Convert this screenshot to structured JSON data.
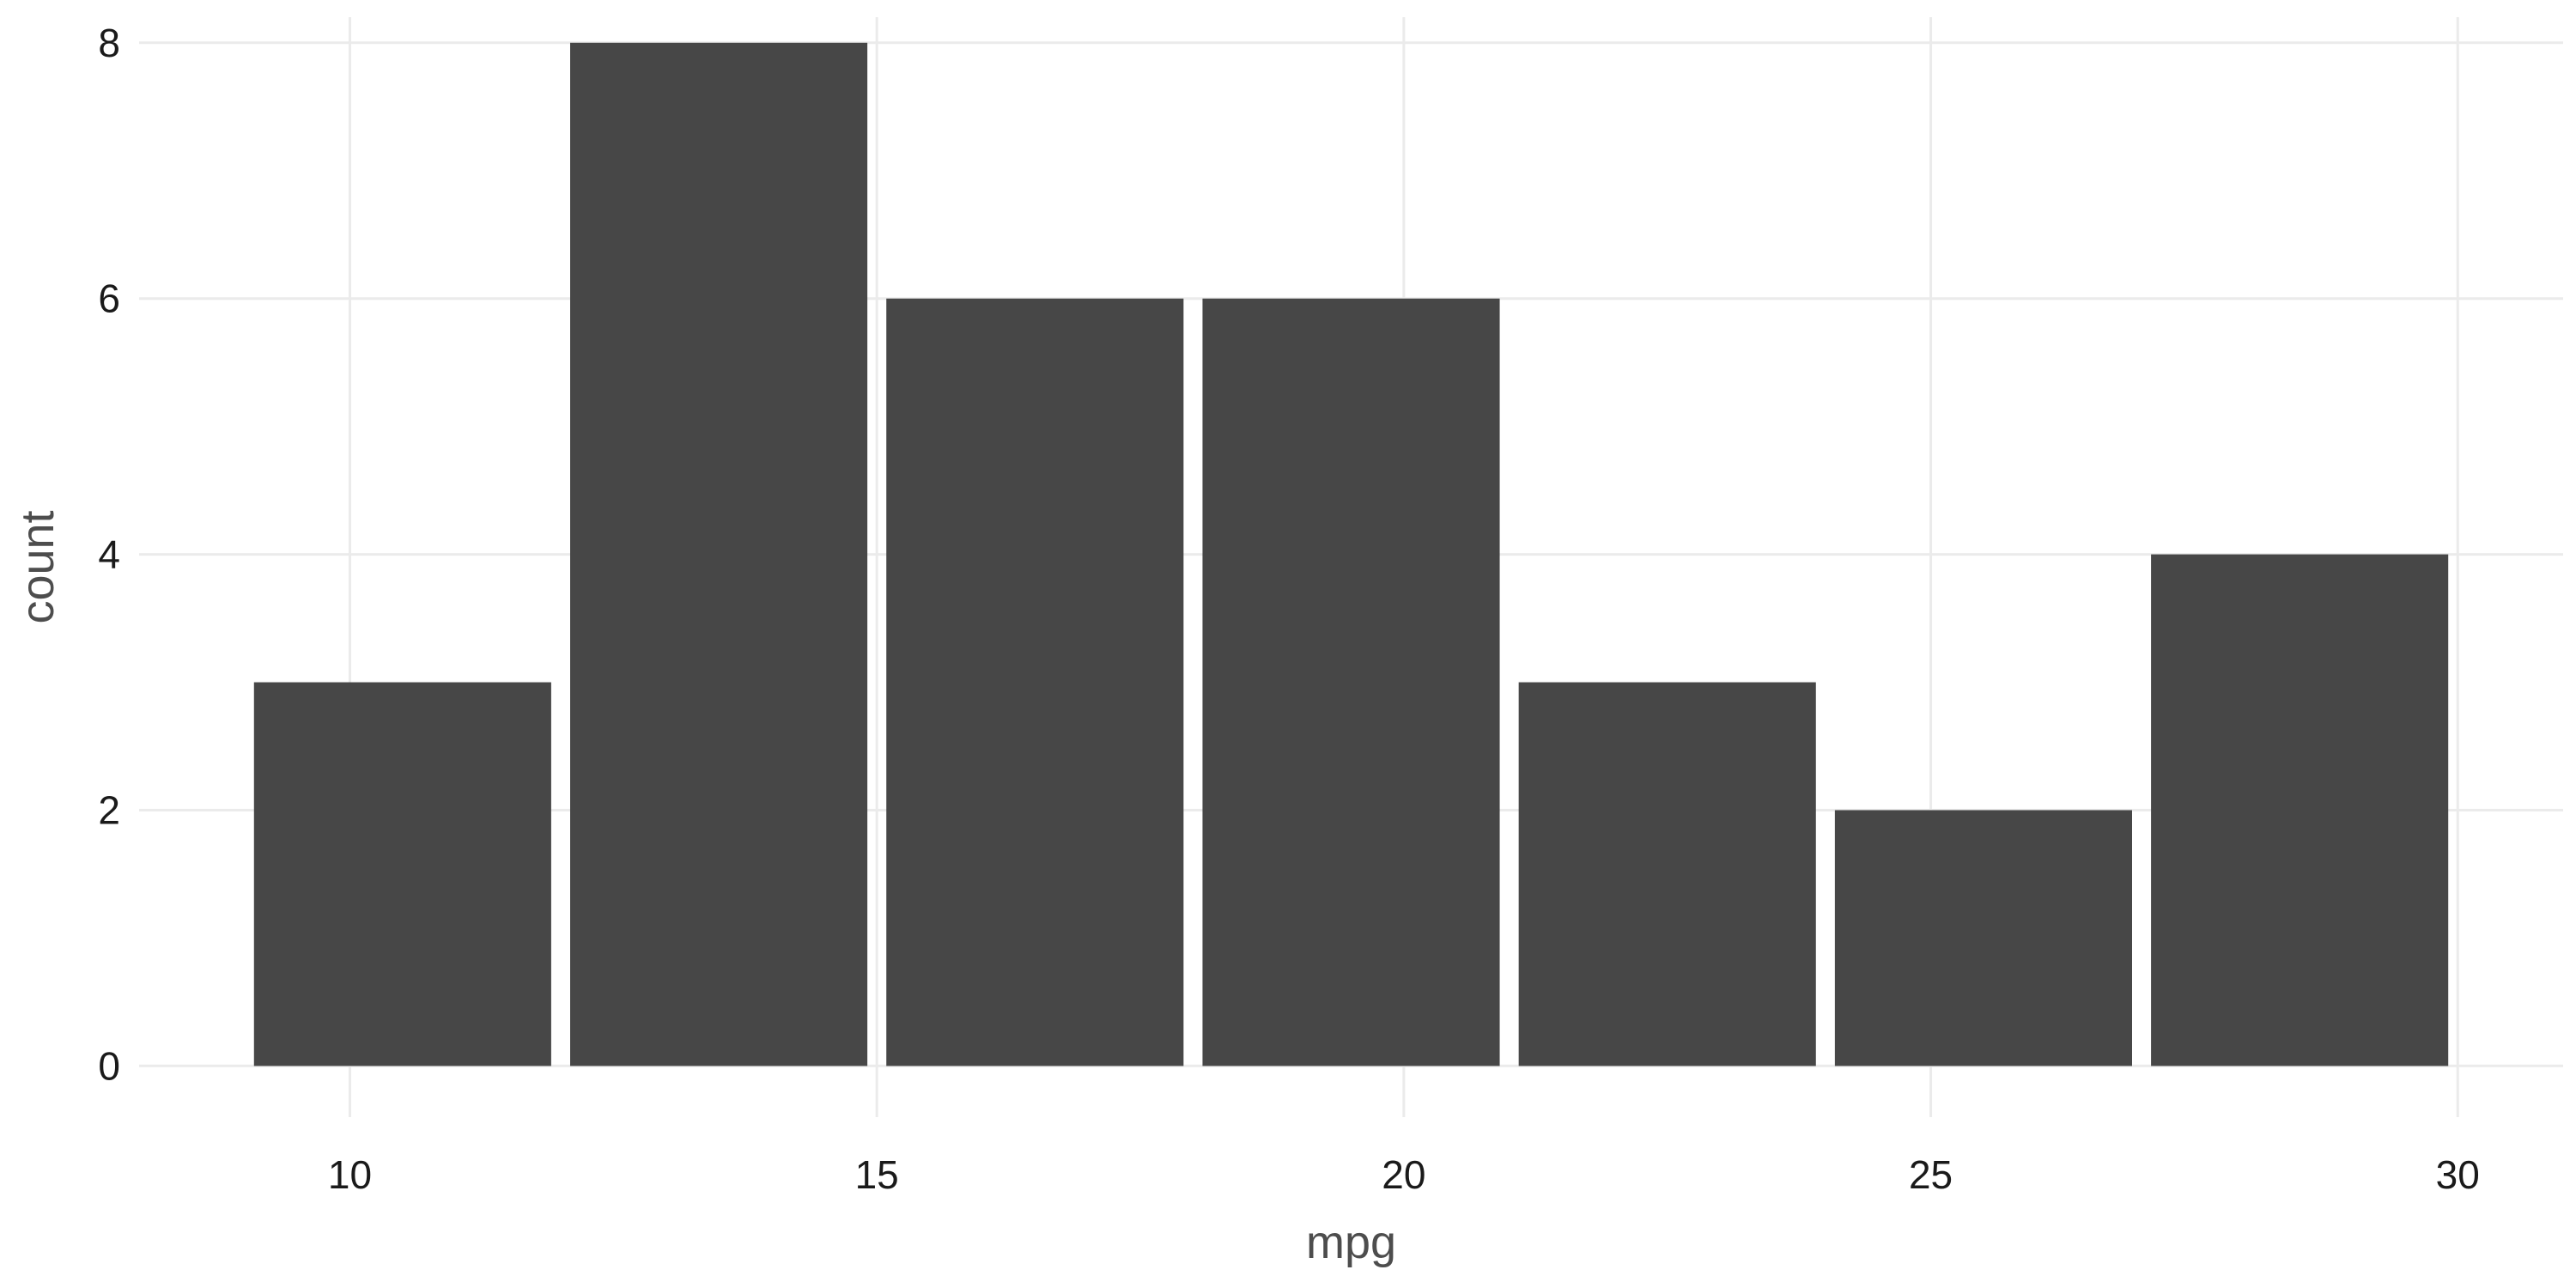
{
  "chart_data": {
    "type": "bar",
    "variant": "histogram",
    "title": "",
    "xlabel": "mpg",
    "ylabel": "count",
    "bins": [
      {
        "x_start": 9.0,
        "x_end": 12.0,
        "count": 3
      },
      {
        "x_start": 12.0,
        "x_end": 15.0,
        "count": 8
      },
      {
        "x_start": 15.0,
        "x_end": 18.0,
        "count": 6
      },
      {
        "x_start": 18.0,
        "x_end": 21.0,
        "count": 6
      },
      {
        "x_start": 21.0,
        "x_end": 24.0,
        "count": 3
      },
      {
        "x_start": 24.0,
        "x_end": 27.0,
        "count": 2
      },
      {
        "x_start": 27.0,
        "x_end": 30.0,
        "count": 4
      }
    ],
    "xlim": [
      8.0,
      31.0
    ],
    "ylim": [
      -0.4,
      8.2
    ],
    "x_ticks": [
      10,
      15,
      20,
      25,
      30
    ],
    "y_ticks": [
      0,
      2,
      4,
      6,
      8
    ],
    "grid": true,
    "legend": "none",
    "colors": {
      "bar": "#474747",
      "grid": "#ebebeb",
      "background": "#ffffff"
    }
  }
}
